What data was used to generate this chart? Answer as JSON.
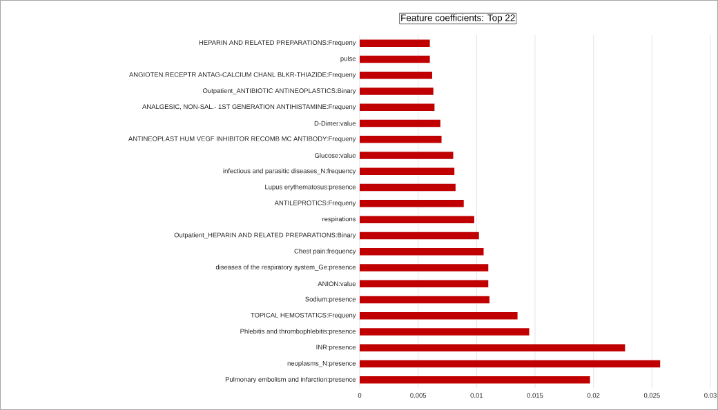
{
  "chart_data": {
    "type": "bar",
    "orientation": "horizontal",
    "title": "Feature coefficients: Top 22",
    "categories": [
      "HEPARIN AND RELATED PREPARATIONS:Frequeny",
      "pulse",
      "ANGIOTEN.RECEPTR ANTAG-CALCIUM CHANL BLKR-THIAZIDE:Frequeny",
      "Outpatient_ANTIBIOTIC ANTINEOPLASTICS:Binary",
      "ANALGESIC, NON-SAL.- 1ST GENERATION ANTIHISTAMINE:Frequeny",
      "D-Dimer:value",
      "ANTINEOPLAST HUM VEGF INHIBITOR RECOMB MC ANTIBODY:Frequeny",
      "Glucose:value",
      "infectious and parasitic diseases_N:frequency",
      "Lupus erythematosus:presence",
      "ANTILEPROTICS:Frequeny",
      "respirations",
      "Outpatient_HEPARIN AND RELATED PREPARATIONS:Binary",
      "Chest pain:frequency",
      "diseases of the respiratory system_Ge:presence",
      "ANION:value",
      "Sodium:presence",
      "TOPICAL HEMOSTATICS:Frequeny",
      "Phlebitis and thrombophlebitis:presence",
      "INR:presence",
      "neoplasms_N:presence",
      "Pulmonary embolism and infarction:presence"
    ],
    "values": [
      0.006,
      0.006,
      0.0062,
      0.0063,
      0.0064,
      0.0069,
      0.007,
      0.008,
      0.0081,
      0.0082,
      0.0089,
      0.0098,
      0.0102,
      0.0106,
      0.011,
      0.011,
      0.0111,
      0.0135,
      0.0145,
      0.0227,
      0.0257,
      0.0197
    ],
    "color": "#c00000",
    "xlim": [
      0,
      0.03
    ],
    "xticks": [
      0,
      0.005,
      0.01,
      0.015,
      0.02,
      0.025,
      0.03
    ],
    "grid": "x"
  }
}
